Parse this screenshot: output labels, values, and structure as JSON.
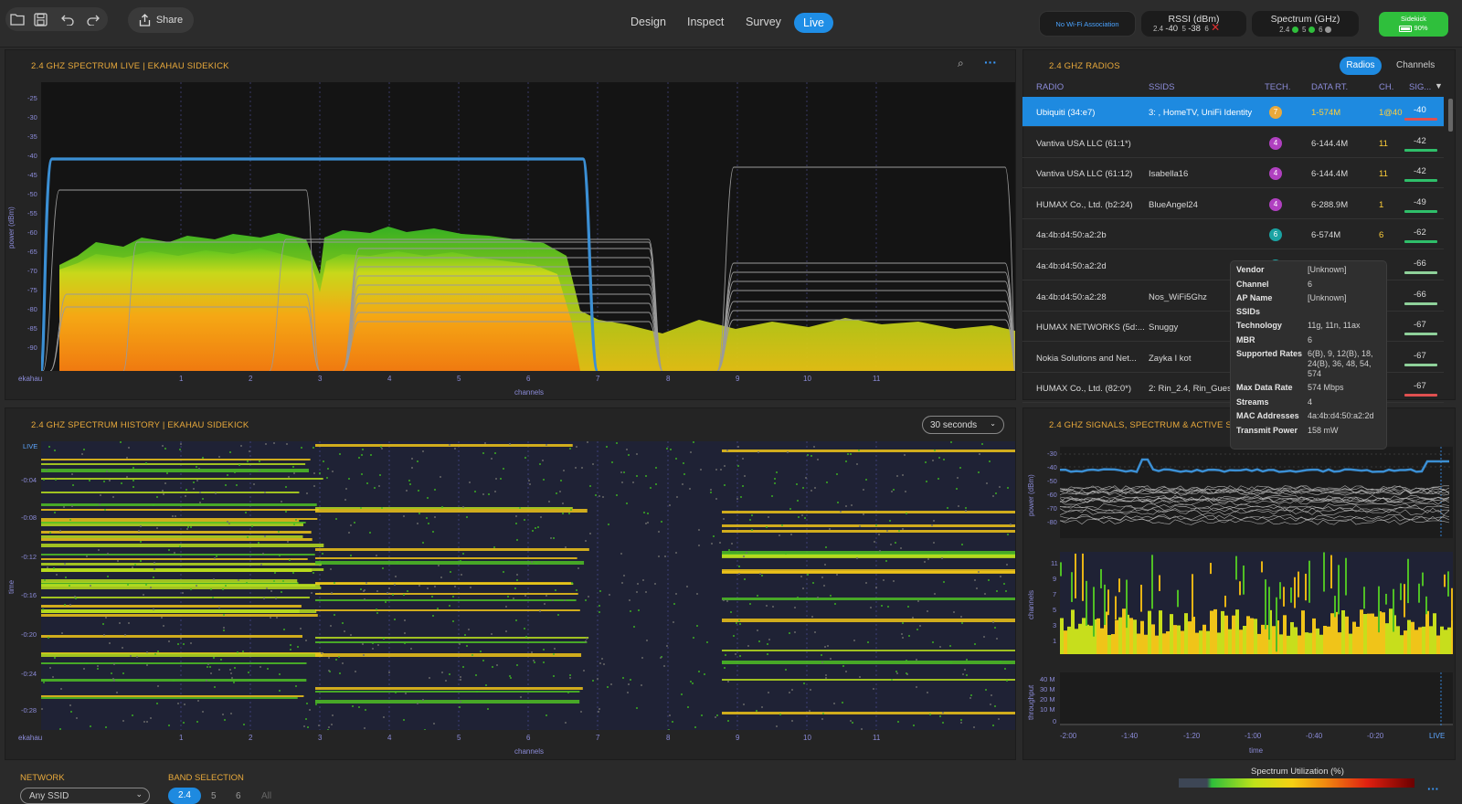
{
  "toolbar": {
    "share_label": "Share",
    "tabs": [
      "Design",
      "Inspect",
      "Survey",
      "Live"
    ],
    "active_tab": "Live",
    "wifi_status": "No Wi-Fi Association",
    "rssi": {
      "title": "RSSI (dBm)",
      "b24": "2.4",
      "v24": "-40",
      "b5": "5",
      "v5": "-38",
      "b6": "6"
    },
    "spectrum": {
      "title": "Spectrum (GHz)",
      "b24": "2.4",
      "b5": "5",
      "b6": "6"
    },
    "sidekick": {
      "label": "Sidekick",
      "battery": "90%"
    }
  },
  "spectrum_live": {
    "title": "2.4 GHZ SPECTRUM LIVE | EKAHAU SIDEKICK",
    "ylabel": "power (dBm)",
    "xlabel": "channels",
    "corner_label": "ekahau",
    "yticks": [
      "-25",
      "-30",
      "-35",
      "-40",
      "-45",
      "-50",
      "-55",
      "-60",
      "-65",
      "-70",
      "-75",
      "-80",
      "-85",
      "-90"
    ],
    "xticks": [
      "1",
      "2",
      "3",
      "4",
      "5",
      "6",
      "7",
      "8",
      "9",
      "10",
      "11"
    ]
  },
  "radios": {
    "title": "2.4 GHZ  RADIOS",
    "toggle": [
      "Radios",
      "Channels"
    ],
    "columns": [
      "RADIO",
      "SSIDS",
      "TECH.",
      "DATA RT.",
      "CH.",
      "SIG..."
    ],
    "rows": [
      {
        "radio": "Ubiquiti (34:e7)",
        "ssids": "3: , HomeTV, UniFi Identity",
        "tech": "7",
        "rate": "1-574M",
        "ch": "1@40",
        "sig": "-40",
        "sigcolor": "#e05050",
        "techcolor": "#e8a93b"
      },
      {
        "radio": "Vantiva USA LLC (61:1*)",
        "ssids": "",
        "tech": "4",
        "rate": "6-144.4M",
        "ch": "11",
        "sig": "-42",
        "sigcolor": "#2fbf6a",
        "techcolor": "#b040c0"
      },
      {
        "radio": "Vantiva USA LLC (61:12)",
        "ssids": "Isabella16",
        "tech": "4",
        "rate": "6-144.4M",
        "ch": "11",
        "sig": "-42",
        "sigcolor": "#2fbf6a",
        "techcolor": "#b040c0"
      },
      {
        "radio": "HUMAX Co., Ltd. (b2:24)",
        "ssids": "BlueAngel24",
        "tech": "4",
        "rate": "6-288.9M",
        "ch": "1",
        "sig": "-49",
        "sigcolor": "#2fbf6a",
        "techcolor": "#b040c0"
      },
      {
        "radio": "4a:4b:d4:50:a2:2b",
        "ssids": "",
        "tech": "6",
        "rate": "6-574M",
        "ch": "6",
        "sig": "-62",
        "sigcolor": "#2fbf6a",
        "techcolor": "#1aa3a3"
      },
      {
        "radio": "4a:4b:d4:50:a2:2d",
        "ssids": "",
        "tech": "6",
        "rate": "6-574M",
        "ch": "6",
        "sig": "-66",
        "sigcolor": "#8fd19a",
        "techcolor": "#1aa3a3"
      },
      {
        "radio": "4a:4b:d4:50:a2:28",
        "ssids": "Nos_WiFi5Ghz",
        "tech": "",
        "rate": "",
        "ch": "",
        "sig": "-66",
        "sigcolor": "#8fd19a",
        "techcolor": "#1aa3a3"
      },
      {
        "radio": "HUMAX NETWORKS (5d:...",
        "ssids": "Snuggy",
        "tech": "",
        "rate": "",
        "ch": "",
        "sig": "-67",
        "sigcolor": "#8fd19a",
        "techcolor": "#1aa3a3"
      },
      {
        "radio": "Nokia Solutions and Net...",
        "ssids": "Zayka I kot",
        "tech": "",
        "rate": "",
        "ch": "",
        "sig": "-67",
        "sigcolor": "#8fd19a",
        "techcolor": "#1aa3a3"
      },
      {
        "radio": "HUMAX Co., Ltd. (82:0*)",
        "ssids": "2: Rin_2.4, Rin_Gues",
        "tech": "",
        "rate": "",
        "ch": "",
        "sig": "-67",
        "sigcolor": "#e05050",
        "techcolor": "#1aa3a3"
      }
    ]
  },
  "tooltip": {
    "items": [
      {
        "k": "Vendor",
        "v": "[Unknown]"
      },
      {
        "k": "Channel",
        "v": "6"
      },
      {
        "k": "AP Name",
        "v": "[Unknown]"
      },
      {
        "k": "SSIDs",
        "v": ""
      },
      {
        "k": "Technology",
        "v": "11g, 11n, 11ax"
      },
      {
        "k": "MBR",
        "v": "6"
      },
      {
        "k": "Supported Rates",
        "v": "6(B), 9, 12(B), 18, 24(B), 36, 48, 54, 574"
      },
      {
        "k": "Max Data Rate",
        "v": "574 Mbps"
      },
      {
        "k": "Streams",
        "v": "4"
      },
      {
        "k": "MAC Addresses",
        "v": "4a:4b:d4:50:a2:2d"
      },
      {
        "k": "Transmit Power",
        "v": "158 mW"
      }
    ]
  },
  "history": {
    "title": "2.4 GHZ SPECTRUM HISTORY | EKAHAU SIDEKICK",
    "duration": "30 seconds",
    "ylabel": "time",
    "xlabel": "channels",
    "corner_label": "ekahau",
    "yticks": [
      "LIVE",
      "-0:04",
      "-0:08",
      "-0:12",
      "-0:16",
      "-0:20",
      "-0:24",
      "-0:28"
    ],
    "xticks": [
      "1",
      "2",
      "3",
      "4",
      "5",
      "6",
      "7",
      "8",
      "9",
      "10",
      "11"
    ]
  },
  "signals": {
    "title": "2.4 GHZ SIGNALS, SPECTRUM & ACTIVE SU",
    "power_label": "power (dBm)",
    "power_ticks": [
      "-30",
      "-40",
      "-50",
      "-60",
      "-70",
      "-80"
    ],
    "channels_label": "channels",
    "channel_ticks": [
      "11",
      "9",
      "7",
      "5",
      "3",
      "1"
    ],
    "throughput_label": "throughput",
    "throughput_ticks": [
      "40 M",
      "30 M",
      "20 M",
      "10 M",
      "0"
    ],
    "xlabel": "time",
    "xticks": [
      "-2:00",
      "-1:40",
      "-1:20",
      "-1:00",
      "-0:40",
      "-0:20",
      "LIVE"
    ]
  },
  "bottom": {
    "network_label": "NETWORK",
    "network_value": "Any SSID",
    "band_label": "BAND SELECTION",
    "bands": [
      "2.4",
      "5",
      "6",
      "All"
    ],
    "utilization_label": "Spectrum Utilization (%)"
  }
}
